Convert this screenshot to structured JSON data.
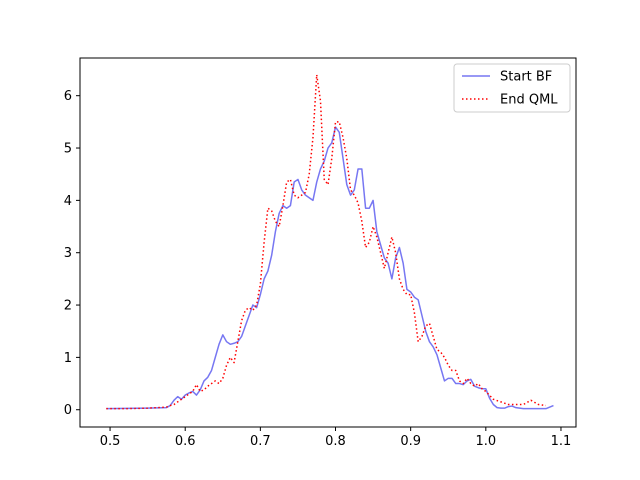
{
  "chart_data": {
    "type": "line",
    "title": "",
    "xlabel": "",
    "ylabel": "",
    "xlim": [
      0.46,
      1.12
    ],
    "ylim": [
      -0.33,
      6.72
    ],
    "xticks": [
      0.5,
      0.6,
      0.7,
      0.8,
      0.9,
      1.0,
      1.1
    ],
    "xtick_labels": [
      "0.5",
      "0.6",
      "0.7",
      "0.8",
      "0.9",
      "1.0",
      "1.1"
    ],
    "yticks": [
      0,
      1,
      2,
      3,
      4,
      5,
      6
    ],
    "ytick_labels": [
      "0",
      "1",
      "2",
      "3",
      "4",
      "5",
      "6"
    ],
    "grid": false,
    "legend_position": "top-right",
    "series": [
      {
        "name": "Start BF",
        "color": "#7777f2",
        "style": "solid",
        "x": [
          0.495,
          0.55,
          0.575,
          0.58,
          0.585,
          0.59,
          0.595,
          0.6,
          0.605,
          0.61,
          0.615,
          0.62,
          0.625,
          0.63,
          0.635,
          0.64,
          0.645,
          0.65,
          0.655,
          0.66,
          0.665,
          0.67,
          0.675,
          0.68,
          0.685,
          0.69,
          0.695,
          0.7,
          0.705,
          0.71,
          0.715,
          0.72,
          0.725,
          0.73,
          0.735,
          0.74,
          0.745,
          0.75,
          0.755,
          0.76,
          0.765,
          0.77,
          0.775,
          0.78,
          0.785,
          0.79,
          0.795,
          0.8,
          0.805,
          0.81,
          0.815,
          0.82,
          0.825,
          0.83,
          0.835,
          0.84,
          0.845,
          0.85,
          0.855,
          0.86,
          0.865,
          0.87,
          0.875,
          0.88,
          0.885,
          0.89,
          0.895,
          0.9,
          0.905,
          0.91,
          0.915,
          0.92,
          0.925,
          0.93,
          0.935,
          0.94,
          0.945,
          0.95,
          0.955,
          0.96,
          0.965,
          0.97,
          0.975,
          0.98,
          0.985,
          0.99,
          0.995,
          1.0,
          1.005,
          1.01,
          1.015,
          1.02,
          1.025,
          1.03,
          1.035,
          1.04,
          1.05,
          1.06,
          1.08,
          1.09
        ],
        "y": [
          0.02,
          0.03,
          0.04,
          0.08,
          0.18,
          0.25,
          0.2,
          0.28,
          0.32,
          0.35,
          0.28,
          0.38,
          0.55,
          0.62,
          0.75,
          1.0,
          1.25,
          1.43,
          1.3,
          1.25,
          1.27,
          1.3,
          1.4,
          1.6,
          1.8,
          2.0,
          1.95,
          2.2,
          2.5,
          2.65,
          2.95,
          3.4,
          3.75,
          3.9,
          3.85,
          3.9,
          4.35,
          4.4,
          4.2,
          4.1,
          4.05,
          4.0,
          4.35,
          4.6,
          4.75,
          5.0,
          5.1,
          5.4,
          5.3,
          4.8,
          4.3,
          4.1,
          4.2,
          4.6,
          4.6,
          3.85,
          3.85,
          4.0,
          3.4,
          3.15,
          2.9,
          2.8,
          2.5,
          2.9,
          3.1,
          2.8,
          2.3,
          2.25,
          2.15,
          2.1,
          1.8,
          1.5,
          1.3,
          1.2,
          1.05,
          0.8,
          0.55,
          0.6,
          0.6,
          0.5,
          0.5,
          0.48,
          0.55,
          0.58,
          0.45,
          0.42,
          0.4,
          0.4,
          0.22,
          0.1,
          0.04,
          0.03,
          0.03,
          0.06,
          0.07,
          0.04,
          0.02,
          0.02,
          0.02,
          0.08
        ]
      },
      {
        "name": "End QML",
        "color": "#ff0000",
        "style": "dotted",
        "x": [
          0.495,
          0.52,
          0.55,
          0.575,
          0.58,
          0.585,
          0.59,
          0.595,
          0.6,
          0.605,
          0.61,
          0.615,
          0.62,
          0.625,
          0.63,
          0.635,
          0.64,
          0.645,
          0.65,
          0.655,
          0.66,
          0.665,
          0.67,
          0.675,
          0.68,
          0.685,
          0.69,
          0.695,
          0.7,
          0.705,
          0.71,
          0.715,
          0.72,
          0.725,
          0.73,
          0.735,
          0.74,
          0.745,
          0.75,
          0.755,
          0.76,
          0.765,
          0.77,
          0.775,
          0.78,
          0.785,
          0.79,
          0.795,
          0.8,
          0.805,
          0.81,
          0.815,
          0.82,
          0.825,
          0.83,
          0.835,
          0.84,
          0.845,
          0.85,
          0.855,
          0.86,
          0.865,
          0.87,
          0.875,
          0.88,
          0.885,
          0.89,
          0.895,
          0.9,
          0.905,
          0.91,
          0.915,
          0.92,
          0.925,
          0.93,
          0.935,
          0.94,
          0.945,
          0.95,
          0.955,
          0.96,
          0.965,
          0.97,
          0.975,
          0.98,
          0.985,
          0.99,
          0.995,
          1.0,
          1.01,
          1.02,
          1.03,
          1.04,
          1.05,
          1.06,
          1.07,
          1.08
        ],
        "y": [
          0.02,
          0.02,
          0.03,
          0.05,
          0.08,
          0.1,
          0.15,
          0.2,
          0.25,
          0.3,
          0.35,
          0.48,
          0.35,
          0.38,
          0.45,
          0.5,
          0.55,
          0.5,
          0.6,
          0.85,
          1.0,
          0.9,
          1.3,
          1.7,
          1.9,
          1.95,
          1.9,
          2.0,
          2.4,
          3.2,
          3.85,
          3.8,
          3.6,
          3.5,
          3.9,
          4.35,
          4.4,
          4.1,
          4.05,
          4.1,
          4.15,
          4.5,
          5.2,
          6.4,
          5.9,
          4.4,
          4.3,
          4.8,
          5.5,
          5.5,
          5.2,
          4.8,
          4.2,
          4.1,
          3.95,
          3.6,
          3.1,
          3.2,
          3.5,
          3.3,
          3.0,
          2.7,
          3.0,
          3.3,
          3.0,
          2.5,
          2.3,
          2.2,
          2.2,
          1.85,
          1.3,
          1.4,
          1.6,
          1.65,
          1.4,
          1.15,
          1.1,
          1.0,
          0.85,
          0.75,
          0.75,
          0.55,
          0.5,
          0.6,
          0.5,
          0.45,
          0.5,
          0.4,
          0.35,
          0.2,
          0.15,
          0.1,
          0.1,
          0.1,
          0.18,
          0.1,
          0.08
        ]
      }
    ]
  }
}
